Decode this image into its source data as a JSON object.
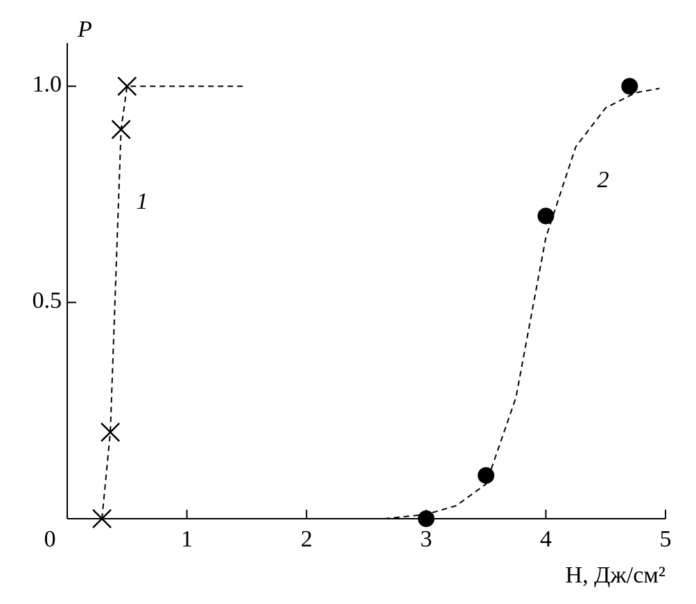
{
  "chart_data": {
    "type": "scatter",
    "y_label": "P",
    "x_label": "H, Дж/см²",
    "xlim": [
      0,
      5
    ],
    "ylim": [
      0,
      1.1
    ],
    "xticks": [
      0,
      1,
      2,
      3,
      4,
      5
    ],
    "yticks": [
      0.5,
      {
        "value": 1,
        "label": "1.0"
      }
    ],
    "series": [
      {
        "name": "1",
        "marker": "x",
        "color": "#000",
        "x": [
          0.29,
          0.36,
          0.45,
          0.5
        ],
        "values": [
          0,
          0.2,
          0.9,
          1.0
        ],
        "line_x": [
          0.29,
          0.36,
          0.45,
          0.5,
          1.49
        ],
        "line_values": [
          0,
          0.2,
          0.9,
          1.0,
          1.0
        ]
      },
      {
        "name": "2",
        "marker": "dot",
        "color": "#000",
        "x": [
          3.0,
          3.5,
          4.0,
          4.7
        ],
        "values": [
          0,
          0.1,
          0.7,
          1.0
        ],
        "line_x": [
          2.65,
          3.0,
          3.25,
          3.5,
          3.75,
          4.0,
          4.25,
          4.5,
          4.75,
          4.95
        ],
        "line_values": [
          0,
          0.01,
          0.03,
          0.08,
          0.28,
          0.65,
          0.86,
          0.95,
          0.985,
          0.995
        ]
      }
    ]
  }
}
